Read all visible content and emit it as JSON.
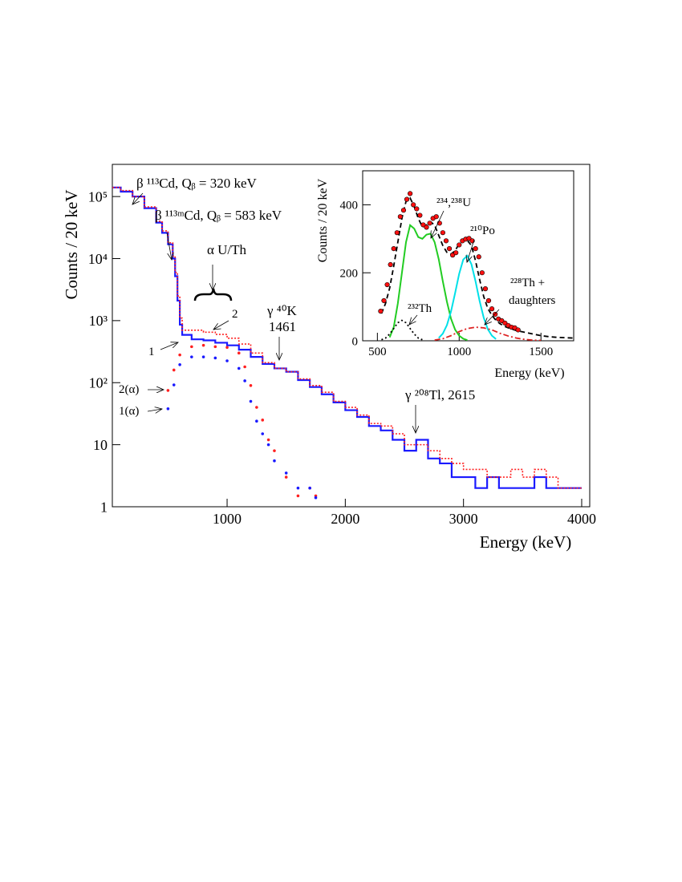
{
  "chart_data": [
    {
      "type": "histogram",
      "ylabel": "Counts / 20 keV",
      "xlabel": "Energy (keV)",
      "xlim": [
        29,
        4068
      ],
      "ylim": [
        1,
        330000
      ],
      "log_y": true,
      "xticks": [
        1000,
        2000,
        3000,
        4000
      ],
      "yticks": [
        1,
        10,
        {
          "value": 100,
          "label": "10²"
        },
        {
          "value": 1000,
          "label": "10³"
        },
        {
          "value": 10000,
          "label": "10⁴"
        },
        {
          "value": 100000,
          "label": "10⁵"
        }
      ],
      "annotations": [
        "β ¹¹³Cd, Qᵦ = 320 keV",
        "β ¹¹³ᵐCd, Qᵦ = 583 keV",
        "α U/Th",
        "γ ⁴⁰K",
        "1461",
        "γ ²⁰⁸Tl, 2615"
      ],
      "series": [
        {
          "name": "1",
          "color": "#1a1aff",
          "style": "solid-step",
          "bins": [
            30,
            100,
            200,
            300,
            400,
            450,
            500,
            540,
            560,
            580,
            600,
            620,
            700,
            800,
            900,
            1000,
            1100,
            1200,
            1300,
            1400,
            1500,
            1600,
            1700,
            1800,
            1900,
            2000,
            2100,
            2200,
            2300,
            2400,
            2500,
            2600,
            2700,
            2800,
            2900,
            3000,
            3100,
            3200,
            3300,
            3400,
            3500,
            3600,
            3700,
            3800,
            3900,
            4000
          ],
          "values": [
            140000,
            120000,
            100000,
            65000,
            38000,
            26000,
            17000,
            10000,
            5200,
            2100,
            860,
            590,
            500,
            480,
            440,
            400,
            340,
            260,
            200,
            170,
            150,
            110,
            85,
            65,
            48,
            36,
            28,
            20,
            17,
            12,
            8,
            12,
            6,
            5,
            3,
            3,
            2,
            3,
            2,
            2,
            2,
            3,
            2,
            2,
            2
          ]
        },
        {
          "name": "2",
          "color": "#ff2020",
          "style": "dotted-step",
          "bins": [
            30,
            100,
            200,
            300,
            400,
            450,
            500,
            540,
            560,
            580,
            600,
            620,
            700,
            800,
            900,
            1000,
            1100,
            1200,
            1300,
            1400,
            1500,
            1600,
            1700,
            1800,
            1900,
            2000,
            2100,
            2200,
            2300,
            2400,
            2500,
            2600,
            2700,
            2800,
            2900,
            3000,
            3100,
            3200,
            3300,
            3400,
            3500,
            3600,
            3700,
            3800,
            3900,
            4000
          ],
          "values": [
            140000,
            125000,
            100000,
            68000,
            40000,
            28000,
            18000,
            11000,
            6000,
            2500,
            1100,
            700,
            700,
            650,
            600,
            520,
            420,
            300,
            210,
            170,
            150,
            115,
            90,
            70,
            50,
            40,
            30,
            22,
            20,
            15,
            10,
            10,
            8,
            6,
            5,
            4,
            4,
            3,
            3,
            4,
            3,
            4,
            3,
            2,
            2
          ]
        },
        {
          "name": "2(α)",
          "color": "#ff2020",
          "style": "points",
          "x": [
            500,
            550,
            600,
            700,
            800,
            900,
            1000,
            1100,
            1150,
            1200,
            1250,
            1300,
            1350,
            1400,
            1500,
            1600,
            1700,
            1750
          ],
          "values": [
            75,
            160,
            280,
            380,
            400,
            380,
            370,
            300,
            180,
            90,
            40,
            25,
            12,
            8,
            3,
            1.5,
            2,
            1.5
          ]
        },
        {
          "name": "1(α)",
          "color": "#1a1aff",
          "style": "points",
          "x": [
            500,
            550,
            600,
            700,
            800,
            900,
            1000,
            1100,
            1150,
            1200,
            1250,
            1300,
            1350,
            1400,
            1500,
            1600,
            1700,
            1750
          ],
          "values": [
            38,
            92,
            195,
            260,
            260,
            250,
            225,
            170,
            107,
            50,
            24,
            15,
            10,
            5.5,
            3.5,
            2,
            2,
            1.4
          ]
        }
      ]
    },
    {
      "type": "line",
      "ylabel": "Counts / 20 keV",
      "xlabel": "Energy (keV)",
      "xlim": [
        410,
        1700
      ],
      "ylim": [
        0,
        500
      ],
      "xticks": [
        500,
        1000,
        1500
      ],
      "yticks": [
        0,
        200,
        400
      ],
      "series": [
        {
          "color": "#000000",
          "style": "dashed",
          "x": [
            525,
            550,
            575,
            600,
            625,
            650,
            675,
            700,
            725,
            750,
            775,
            800,
            825,
            850,
            875,
            900,
            925,
            950,
            975,
            1000,
            1025,
            1050,
            1075,
            1100,
            1125,
            1150,
            1175,
            1200,
            1225,
            1250,
            1275,
            1300,
            1350,
            1400,
            1450,
            1500,
            1550,
            1600,
            1650,
            1700
          ],
          "values": [
            80,
            110,
            155,
            220,
            290,
            360,
            410,
            420,
            395,
            360,
            335,
            340,
            350,
            340,
            310,
            280,
            260,
            255,
            265,
            285,
            295,
            295,
            280,
            235,
            180,
            130,
            95,
            75,
            60,
            50,
            43,
            38,
            30,
            25,
            20,
            15,
            12,
            10,
            9,
            8
          ]
        },
        {
          "label": [
            "²³⁴,²³⁸U"
          ],
          "color": "#22cc22",
          "style": "solid",
          "x": [
            575,
            600,
            625,
            650,
            675,
            700,
            725,
            750,
            775,
            800,
            825,
            850,
            875,
            900,
            925,
            950,
            975,
            1000,
            1025,
            1050
          ],
          "values": [
            10,
            40,
            110,
            200,
            290,
            340,
            330,
            305,
            300,
            312,
            315,
            290,
            240,
            175,
            115,
            65,
            33,
            15,
            6,
            2
          ]
        },
        {
          "label": [
            "²¹⁰Po"
          ],
          "color": "#00e0e8",
          "style": "solid",
          "x": [
            875,
            900,
            925,
            950,
            975,
            1000,
            1025,
            1050,
            1075,
            1100,
            1125,
            1150,
            1175,
            1200,
            1225
          ],
          "values": [
            8,
            21,
            46,
            86,
            140,
            197,
            239,
            250,
            225,
            175,
            117,
            68,
            34,
            15,
            5
          ]
        },
        {
          "label": [
            "²³²Th"
          ],
          "color": "#000000",
          "style": "dotted",
          "x": [
            525,
            550,
            575,
            600,
            625,
            650,
            675,
            700,
            725,
            750,
            775
          ],
          "values": [
            3,
            8,
            20,
            36,
            53,
            60,
            53,
            36,
            20,
            8,
            3
          ]
        },
        {
          "label": [
            "²²⁸Th +",
            "daughters"
          ],
          "color": "#dd2222",
          "style": "dash-dot",
          "x": [
            850,
            900,
            950,
            1000,
            1050,
            1100,
            1150,
            1200,
            1250,
            1300,
            1350,
            1400,
            1450,
            1500
          ],
          "values": [
            2,
            6,
            15,
            27,
            36,
            40,
            38,
            32,
            22,
            14,
            8,
            4,
            2,
            1
          ]
        },
        {
          "color": "#ff1010",
          "style": "points",
          "x": [
            520,
            540,
            560,
            580,
            600,
            620,
            640,
            660,
            680,
            700,
            720,
            740,
            760,
            780,
            800,
            820,
            840,
            860,
            880,
            900,
            920,
            940,
            960,
            980,
            1000,
            1020,
            1040,
            1060,
            1080,
            1100,
            1120,
            1140,
            1160,
            1180,
            1200,
            1220,
            1240,
            1260,
            1280,
            1300,
            1320,
            1340,
            1360
          ],
          "values": [
            87,
            118,
            165,
            224,
            271,
            318,
            365,
            384,
            416,
            433,
            400,
            388,
            369,
            341,
            334,
            346,
            360,
            365,
            346,
            318,
            294,
            271,
            252,
            259,
            282,
            294,
            299,
            301,
            294,
            271,
            247,
            200,
            153,
            118,
            94,
            78,
            64,
            59,
            52,
            45,
            40,
            38,
            32
          ]
        }
      ]
    }
  ]
}
